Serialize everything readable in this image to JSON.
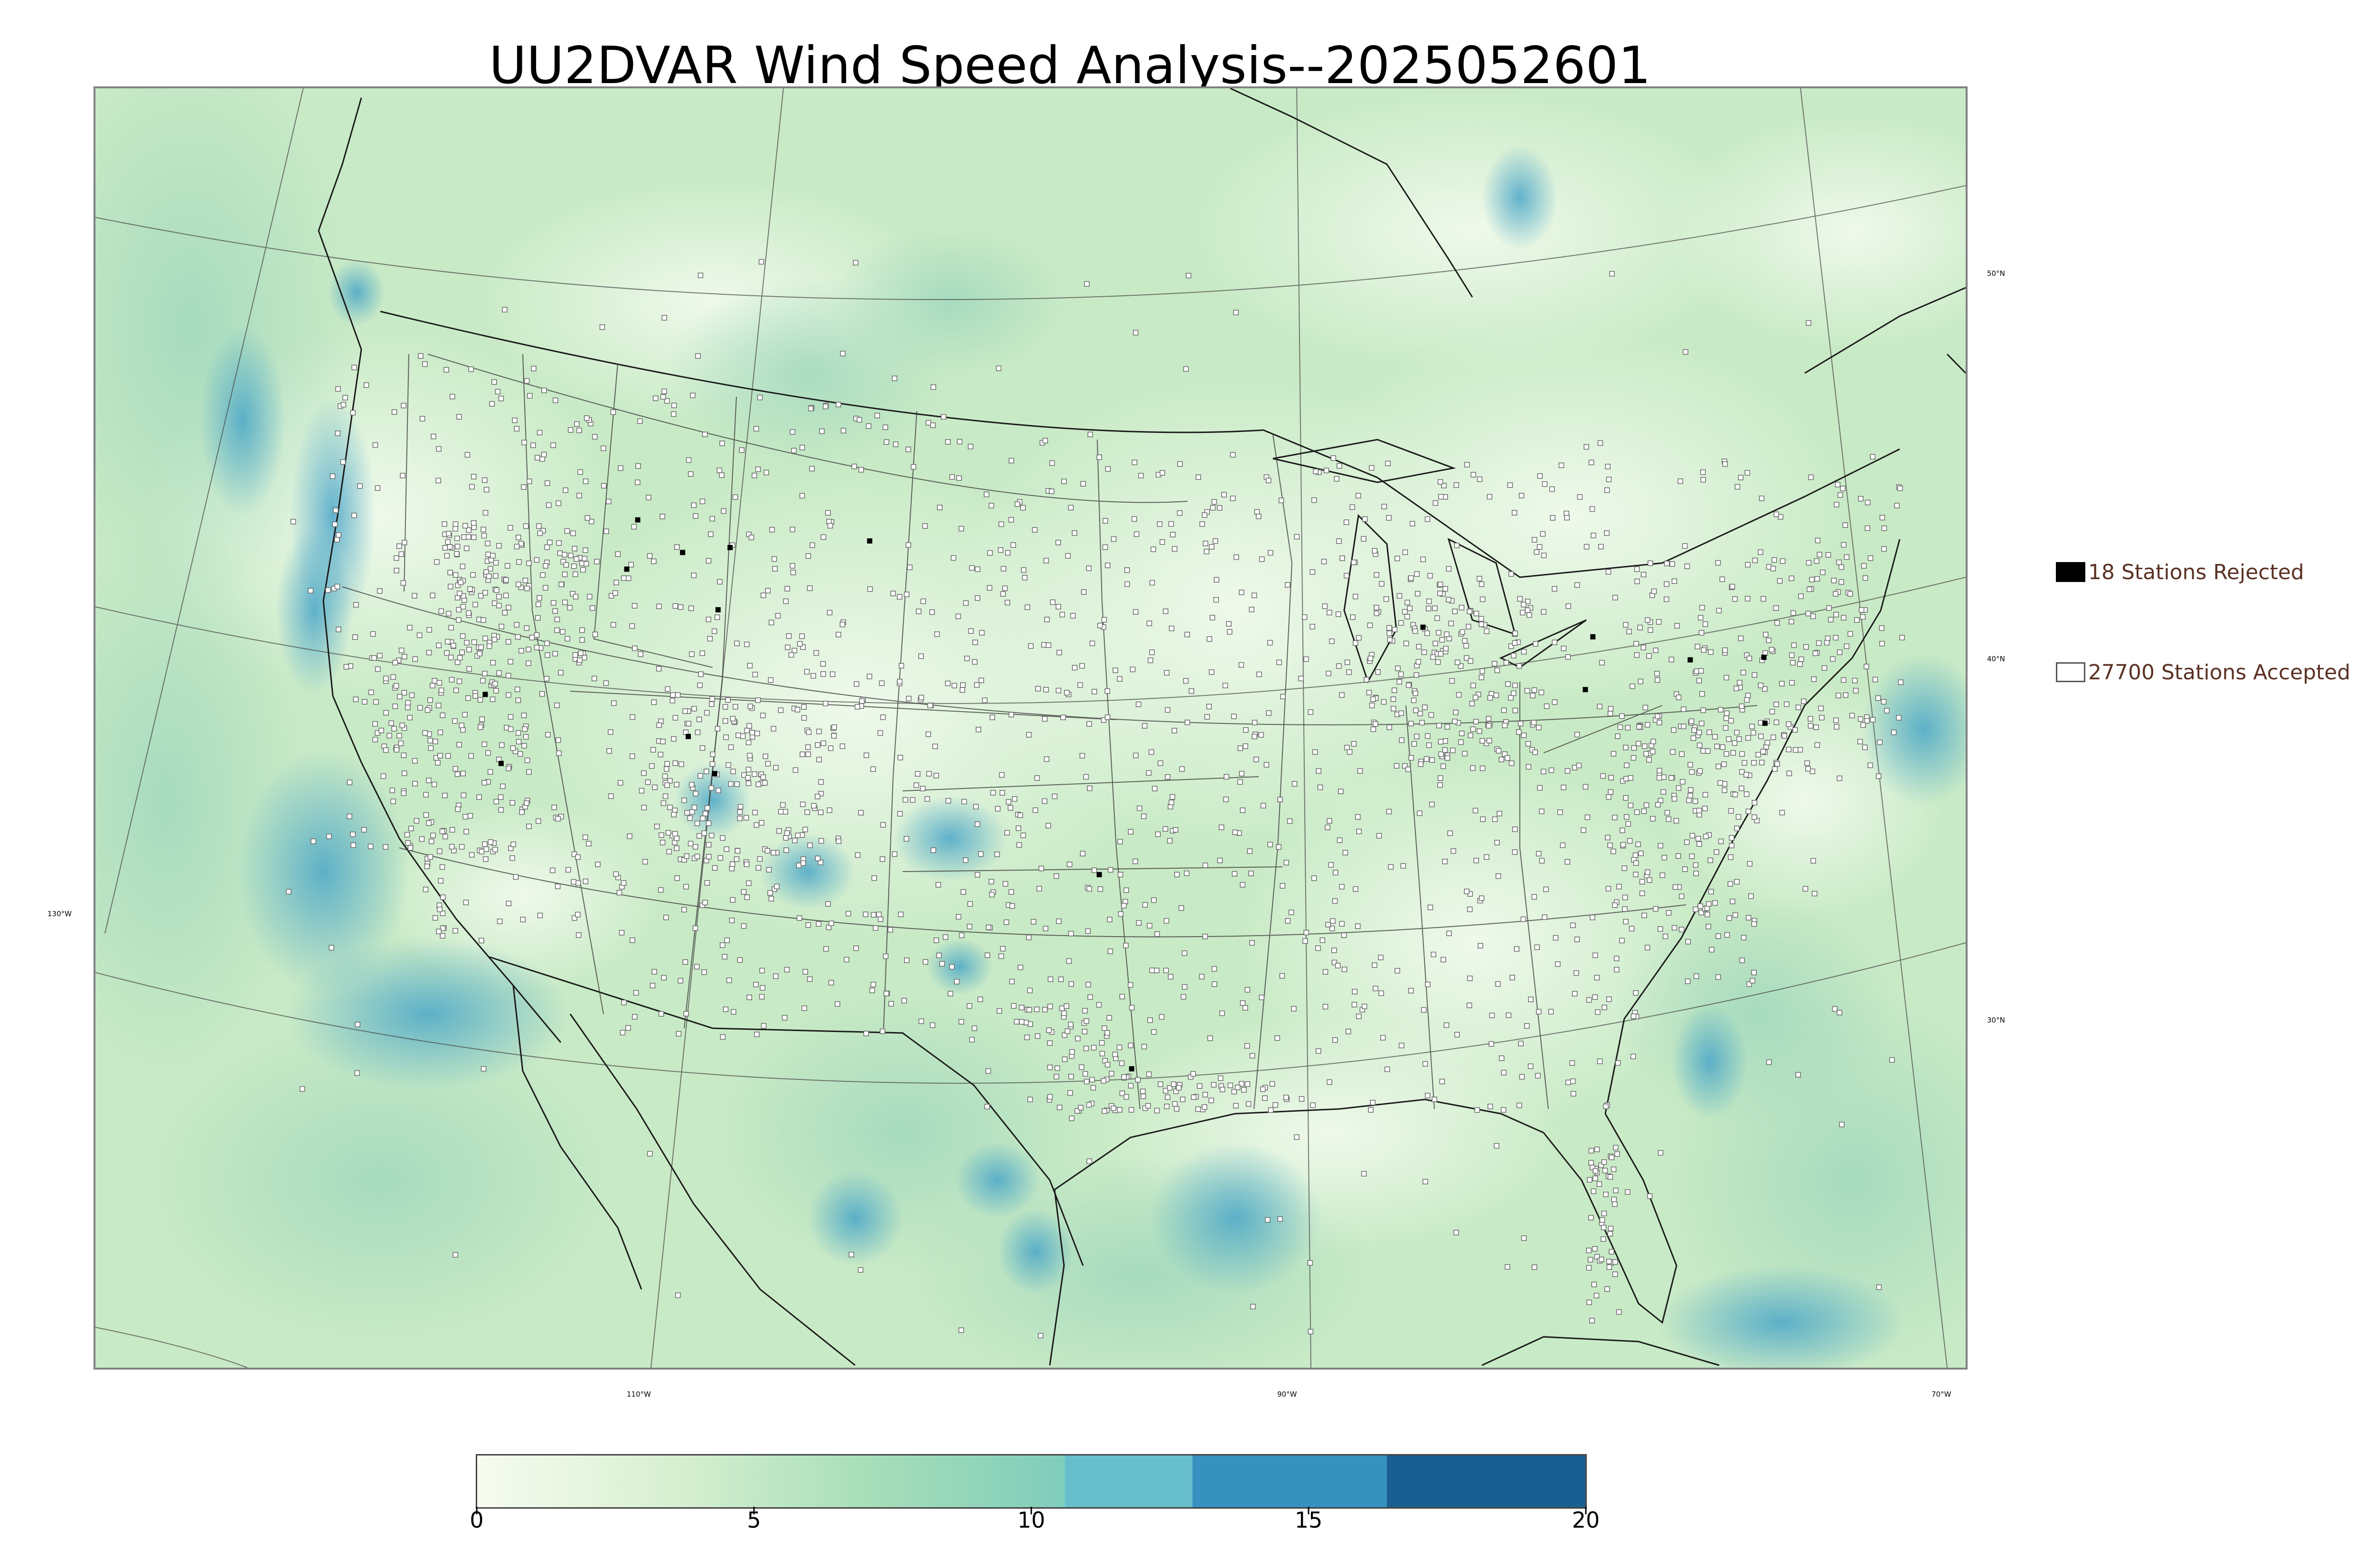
{
  "title": "UU2DVAR Wind Speed Analysis--2025052601",
  "map": {
    "latitude_labels": [
      "50°N",
      "40°N",
      "30°N"
    ],
    "longitude_labels": [
      "130°W",
      "110°W",
      "90°W",
      "70°W"
    ],
    "colors": {
      "land_base": "#d6efd2",
      "water_base": "#b9e3bd",
      "high_wind": "#4aa6c8",
      "very_high_wind": "#2e86b8",
      "coastline": "#1a1a1a",
      "station_accepted_fill": "#ffffff",
      "station_accepted_stroke": "#6a6a6a",
      "station_rejected_fill": "#000000"
    }
  },
  "legend": {
    "rejected_label": "18 Stations Rejected",
    "accepted_label": "27700 Stations Accepted",
    "rejected_count": 18,
    "accepted_count": 27700
  },
  "colorbar": {
    "min": 0,
    "max": 20,
    "tick_values": [
      0,
      5,
      10,
      15,
      20
    ],
    "tick_labels": [
      "0",
      "5",
      "10",
      "15",
      "20"
    ],
    "bins": [
      {
        "from": 0,
        "to": 10.6,
        "gradient_from": "#f7fcf0",
        "gradient_to": "#7fcdbb",
        "smooth": true
      },
      {
        "from": 10.6,
        "to": 12.9,
        "color": "#67bfcc"
      },
      {
        "from": 12.9,
        "to": 16.4,
        "color": "#3691bf"
      },
      {
        "from": 16.4,
        "to": 20,
        "color": "#1a5f91"
      }
    ]
  }
}
